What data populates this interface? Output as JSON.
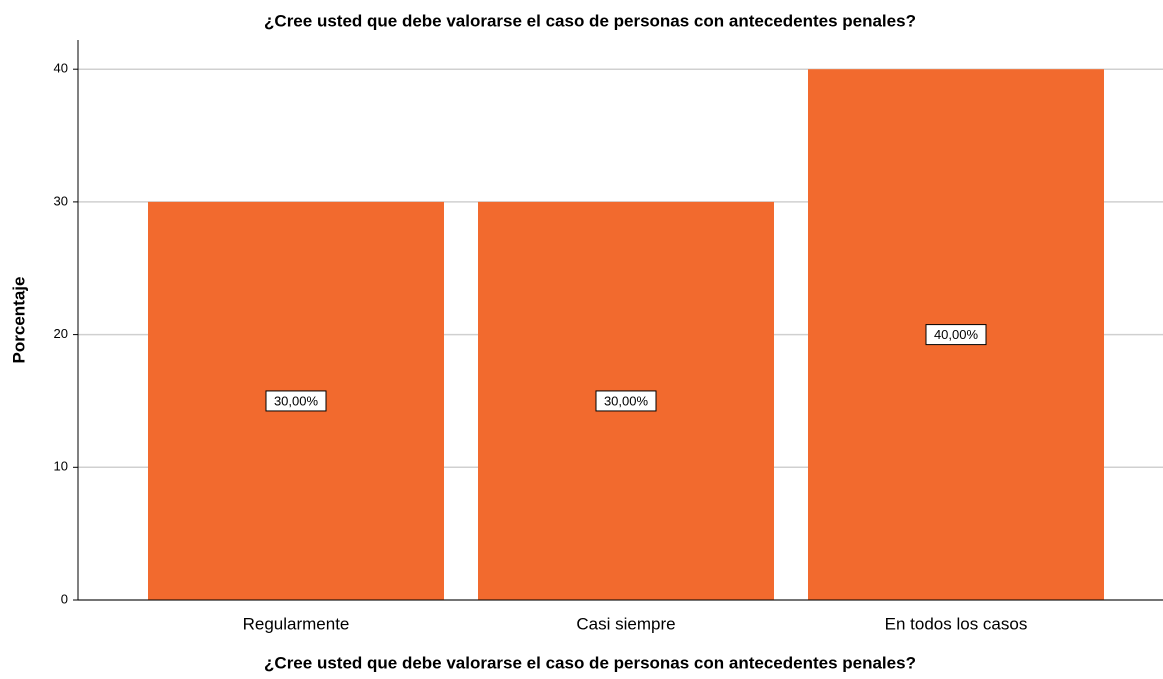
{
  "chart_data": {
    "type": "bar",
    "title": "¿Cree usted que debe valorarse el caso de personas con antecedentes penales?",
    "x_label": "¿Cree usted que debe valorarse el caso de personas con antecedentes penales?",
    "y_label": "Porcentaje",
    "categories": [
      "Regularmente",
      "Casi siempre",
      "En todos los casos"
    ],
    "values": [
      30,
      30,
      40
    ],
    "value_labels": [
      "30,00%",
      "30,00%",
      "40,00%"
    ],
    "color": "#f26a2e",
    "ylim": [
      0,
      42.2
    ],
    "yticks": [
      0,
      10,
      20,
      30,
      40
    ],
    "grid": true
  }
}
